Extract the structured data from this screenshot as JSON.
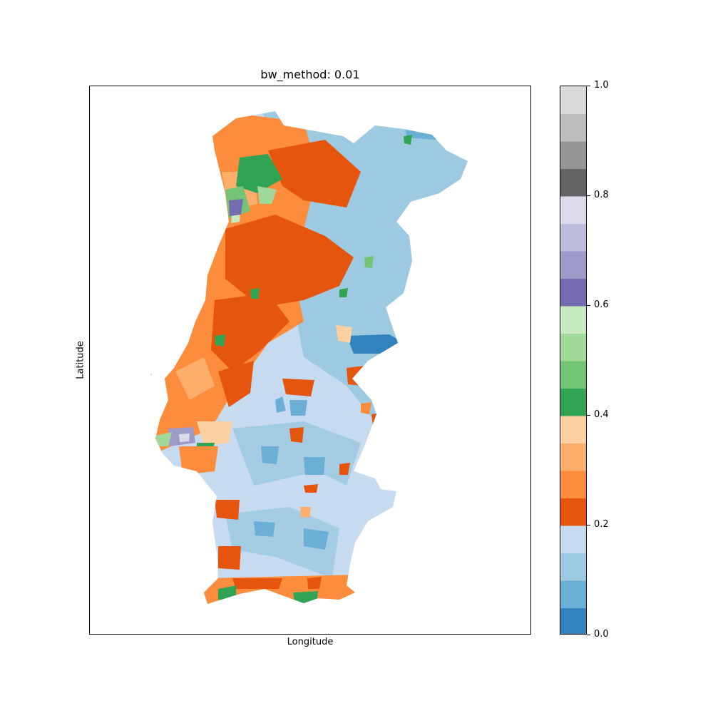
{
  "title": "bw_method: 0.01",
  "xlabel": "Longitude",
  "ylabel": "Latitude",
  "colorbar": {
    "range": [
      0.0,
      1.0
    ],
    "tick_labels": [
      "0.0",
      "0.2",
      "0.4",
      "0.6",
      "0.8",
      "1.0"
    ],
    "tick_values": [
      0.0,
      0.2,
      0.4,
      0.6,
      0.8,
      1.0
    ],
    "colors": [
      "#3182bd",
      "#6baed6",
      "#9ecae1",
      "#c6dbef",
      "#e6550d",
      "#fd8d3c",
      "#fdae6b",
      "#fdd0a2",
      "#31a354",
      "#74c476",
      "#a1d99b",
      "#c7e9c0",
      "#756bb1",
      "#9e9ac8",
      "#bcbddc",
      "#dadaeb",
      "#636363",
      "#969696",
      "#bdbdbd",
      "#d9d9d9"
    ]
  },
  "map": {
    "region": "Portugal (continental)",
    "colormap": "tab20c",
    "dominant_colors": {
      "north_coast": "#fd8d3c",
      "north_interior": "#e6550d",
      "northeast": "#9ecae1",
      "south": "#c6dbef",
      "algarve_coast": "#fd8d3c"
    }
  }
}
